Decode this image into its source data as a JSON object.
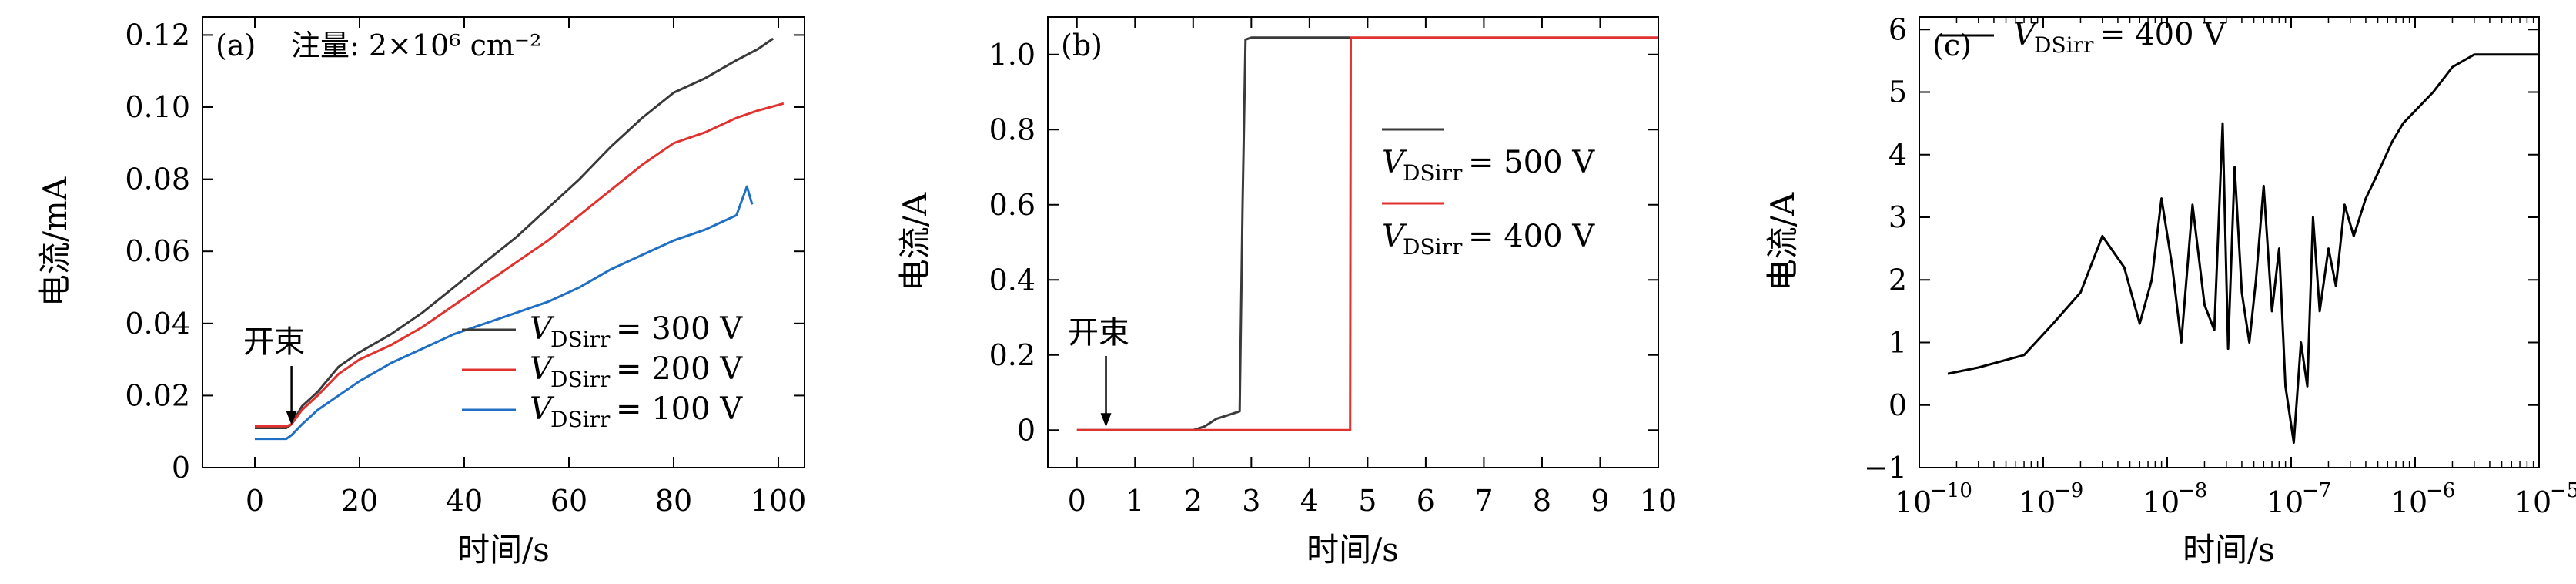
{
  "chart_data": [
    {
      "type": "line",
      "panel_label": "(a)",
      "annotation_title": "注量: 2×10⁶ cm⁻²",
      "annotation_label": "开束",
      "annotation_x": 7,
      "xlabel": "时间/s",
      "ylabel": "电流/mA",
      "xlim": [
        -10,
        105
      ],
      "ylim": [
        0,
        0.125
      ],
      "xticks": [
        0,
        20,
        40,
        60,
        80,
        100
      ],
      "yticks": [
        0,
        0.02,
        0.04,
        0.06,
        0.08,
        0.1,
        0.12
      ],
      "ytick_labels": [
        "0",
        "0.02",
        "0.04",
        "0.06",
        "0.08",
        "0.10",
        "0.12"
      ],
      "legend": "lower-right",
      "series": [
        {
          "name": "V_DSirr = 300 V",
          "legend_text": "= 300 V",
          "color": "#3a3a3a",
          "x": [
            0,
            4,
            6,
            7,
            9,
            12,
            16,
            20,
            26,
            32,
            38,
            44,
            50,
            56,
            62,
            68,
            74,
            80,
            86,
            92,
            96,
            99
          ],
          "y": [
            0.011,
            0.011,
            0.011,
            0.012,
            0.017,
            0.021,
            0.028,
            0.032,
            0.037,
            0.043,
            0.05,
            0.057,
            0.064,
            0.072,
            0.08,
            0.089,
            0.097,
            0.104,
            0.108,
            0.113,
            0.116,
            0.119
          ]
        },
        {
          "name": "V_DSirr = 200 V",
          "legend_text": "= 200 V",
          "color": "#e0322f",
          "x": [
            0,
            4,
            6,
            7,
            9,
            12,
            16,
            20,
            26,
            32,
            38,
            44,
            50,
            56,
            62,
            68,
            74,
            80,
            86,
            92,
            96,
            101
          ],
          "y": [
            0.0115,
            0.0115,
            0.0115,
            0.012,
            0.016,
            0.02,
            0.026,
            0.03,
            0.034,
            0.039,
            0.045,
            0.051,
            0.057,
            0.063,
            0.07,
            0.077,
            0.084,
            0.09,
            0.093,
            0.097,
            0.099,
            0.101
          ]
        },
        {
          "name": "V_DSirr = 100 V",
          "legend_text": "= 100 V",
          "color": "#1f6fc5",
          "x": [
            0,
            4,
            6,
            7,
            9,
            12,
            16,
            20,
            26,
            32,
            38,
            44,
            50,
            56,
            62,
            68,
            74,
            80,
            86,
            92,
            94,
            95
          ],
          "y": [
            0.008,
            0.008,
            0.008,
            0.009,
            0.012,
            0.016,
            0.02,
            0.024,
            0.029,
            0.033,
            0.037,
            0.04,
            0.043,
            0.046,
            0.05,
            0.055,
            0.059,
            0.063,
            0.066,
            0.07,
            0.078,
            0.073
          ]
        }
      ]
    },
    {
      "type": "line",
      "panel_label": "(b)",
      "annotation_label": "开束",
      "annotation_x": 0.5,
      "xlabel": "时间/s",
      "ylabel": "电流/A",
      "xlim": [
        -0.5,
        10
      ],
      "ylim": [
        -0.1,
        1.1
      ],
      "xticks": [
        0,
        1,
        2,
        3,
        4,
        5,
        6,
        7,
        8,
        9,
        10
      ],
      "yticks": [
        0,
        0.2,
        0.4,
        0.6,
        0.8,
        1.0
      ],
      "ytick_labels": [
        "0",
        "0.2",
        "0.4",
        "0.6",
        "0.8",
        "1.0"
      ],
      "legend": "right",
      "series": [
        {
          "name": "V_DSirr = 500 V",
          "legend_text": "= 500 V",
          "color": "#3a3a3a",
          "x": [
            0,
            2.0,
            2.2,
            2.4,
            2.6,
            2.8,
            2.85,
            2.9,
            3.0,
            4.7
          ],
          "y": [
            0,
            0,
            0.01,
            0.03,
            0.04,
            0.05,
            0.6,
            1.04,
            1.045,
            1.045
          ]
        },
        {
          "name": "V_DSirr = 400 V",
          "legend_text": "= 400 V",
          "color": "#e0322f",
          "x": [
            0,
            4.7,
            4.71,
            10
          ],
          "y": [
            0,
            0,
            1.045,
            1.045
          ]
        }
      ]
    },
    {
      "type": "line",
      "panel_label": "(c)",
      "xlabel": "时间/s",
      "ylabel": "电流/A",
      "x_scale": "log",
      "xlim": [
        1e-10,
        1e-05
      ],
      "ylim": [
        -1,
        6.2
      ],
      "xticks": [
        1e-10,
        1e-09,
        1e-08,
        1e-07,
        1e-06,
        1e-05
      ],
      "xtick_exponents": [
        "−10",
        "−9",
        "−8",
        "−7",
        "−6",
        "−5"
      ],
      "yticks": [
        -1,
        0,
        1,
        2,
        3,
        4,
        5,
        6
      ],
      "ytick_labels": [
        "−1",
        "0",
        "1",
        "2",
        "3",
        "4",
        "5",
        "6"
      ],
      "legend": "top-left",
      "series": [
        {
          "name": "V_DSirr = 400 V",
          "legend_text": "= 400 V",
          "color": "#000000",
          "x": [
            1.7e-10,
            3e-10,
            7e-10,
            1.2e-09,
            2e-09,
            3e-09,
            4.5e-09,
            6e-09,
            7.5e-09,
            9e-09,
            1.1e-08,
            1.3e-08,
            1.6e-08,
            2e-08,
            2.4e-08,
            2.8e-08,
            3.1e-08,
            3.5e-08,
            4e-08,
            4.6e-08,
            5.2e-08,
            6e-08,
            7e-08,
            8e-08,
            9e-08,
            1.05e-07,
            1.2e-07,
            1.35e-07,
            1.5e-07,
            1.7e-07,
            2e-07,
            2.3e-07,
            2.7e-07,
            3.2e-07,
            4e-07,
            5e-07,
            6.5e-07,
            8e-07,
            1e-06,
            1.4e-06,
            2e-06,
            3e-06,
            6e-06,
            1e-05
          ],
          "y": [
            0.5,
            0.6,
            0.8,
            1.3,
            1.8,
            2.7,
            2.2,
            1.3,
            2.0,
            3.3,
            2.2,
            1.0,
            3.2,
            1.6,
            1.2,
            4.5,
            0.9,
            3.8,
            1.8,
            1.0,
            2.0,
            3.5,
            1.5,
            2.5,
            0.3,
            -0.6,
            1.0,
            0.3,
            3.0,
            1.5,
            2.5,
            1.9,
            3.2,
            2.7,
            3.3,
            3.7,
            4.2,
            4.5,
            4.7,
            5.0,
            5.4,
            5.6,
            5.6,
            5.6
          ]
        }
      ]
    }
  ]
}
